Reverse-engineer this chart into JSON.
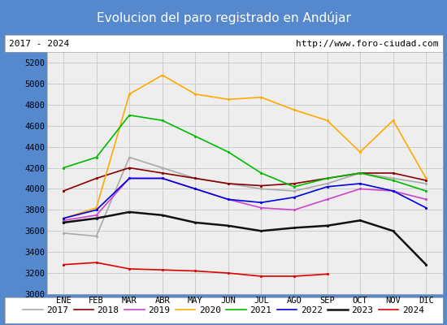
{
  "title": "Evolucion del paro registrado en Andújar",
  "subtitle_left": "2017 - 2024",
  "subtitle_right": "http://www.foro-ciudad.com",
  "months": [
    "ENE",
    "FEB",
    "MAR",
    "ABR",
    "MAY",
    "JUN",
    "JUL",
    "AGO",
    "SEP",
    "OCT",
    "NOV",
    "DIC"
  ],
  "ylim": [
    3000,
    5300
  ],
  "yticks": [
    3000,
    3200,
    3400,
    3600,
    3800,
    4000,
    4200,
    4400,
    4600,
    4800,
    5000,
    5200
  ],
  "series": {
    "2017": {
      "color": "#aaaaaa",
      "linewidth": 1.2,
      "data": [
        3580,
        3550,
        4300,
        4200,
        4100,
        4050,
        4000,
        3980,
        4050,
        4150,
        4100,
        4050
      ]
    },
    "2018": {
      "color": "#880000",
      "linewidth": 1.2,
      "data": [
        3980,
        4100,
        4200,
        4150,
        4100,
        4050,
        4030,
        4050,
        4100,
        4150,
        4150,
        4080
      ]
    },
    "2019": {
      "color": "#cc44cc",
      "linewidth": 1.2,
      "data": [
        3700,
        3750,
        4100,
        4100,
        4000,
        3900,
        3820,
        3800,
        3900,
        4000,
        3980,
        3900
      ]
    },
    "2020": {
      "color": "#ffaa00",
      "linewidth": 1.2,
      "data": [
        3720,
        3820,
        4900,
        5080,
        4900,
        4850,
        4870,
        4750,
        4650,
        4350,
        4650,
        4100
      ]
    },
    "2021": {
      "color": "#00bb00",
      "linewidth": 1.2,
      "data": [
        4200,
        4300,
        4700,
        4650,
        4500,
        4350,
        4150,
        4020,
        4100,
        4150,
        4080,
        3980
      ]
    },
    "2022": {
      "color": "#0000dd",
      "linewidth": 1.2,
      "data": [
        3720,
        3800,
        4100,
        4100,
        4000,
        3900,
        3870,
        3920,
        4020,
        4050,
        3980,
        3820
      ]
    },
    "2023": {
      "color": "#111111",
      "linewidth": 1.8,
      "data": [
        3680,
        3720,
        3780,
        3750,
        3680,
        3650,
        3600,
        3630,
        3650,
        3700,
        3600,
        3280
      ]
    },
    "2024": {
      "color": "#dd0000",
      "linewidth": 1.2,
      "data": [
        3280,
        3300,
        3240,
        3230,
        3220,
        3200,
        3170,
        3170,
        3190,
        null,
        null,
        null
      ]
    }
  },
  "title_bg": "#5588cc",
  "title_color": "#ffffff",
  "title_fontsize": 11,
  "subtitle_fontsize": 8,
  "tick_fontsize": 7.5,
  "legend_fontsize": 8,
  "plot_bg": "#eeeeee",
  "grid_color": "#cccccc",
  "outer_bg": "#5588cc"
}
